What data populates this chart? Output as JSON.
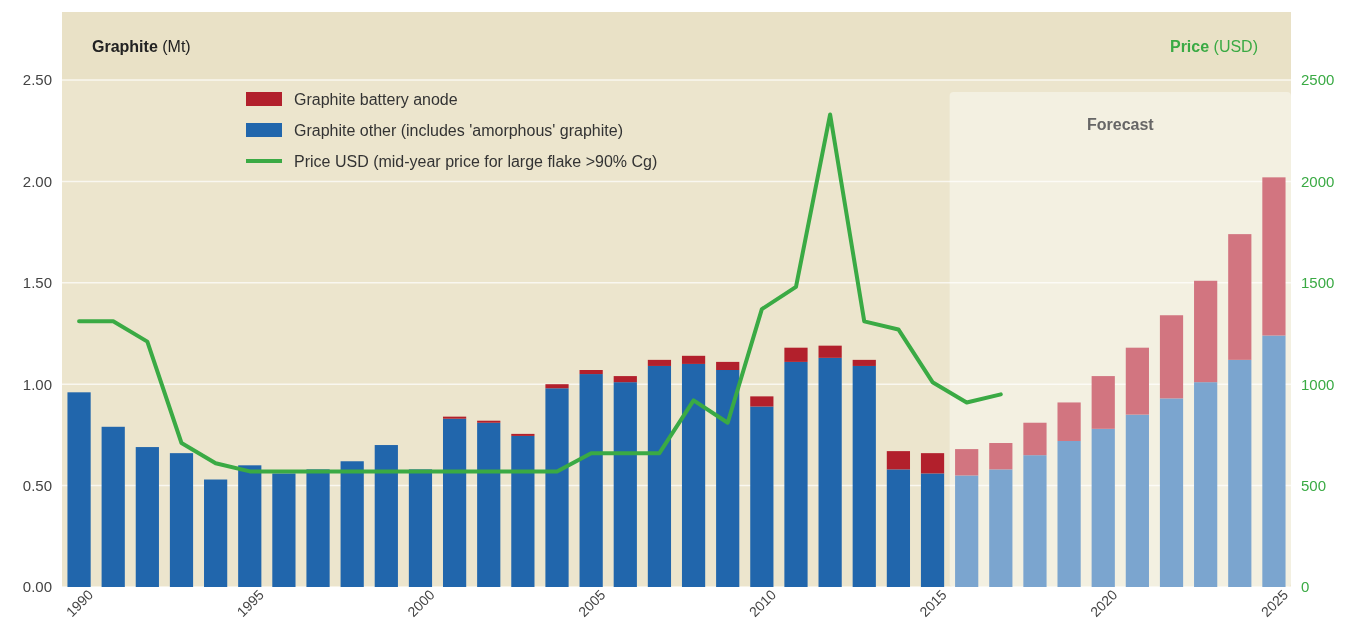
{
  "chart_data": {
    "type": "bar",
    "stacked": true,
    "ylabel": "Graphite (Mt)",
    "y2label": "Price (USD)",
    "x": [
      1990,
      1991,
      1992,
      1993,
      1994,
      1995,
      1996,
      1997,
      1998,
      1999,
      2000,
      2001,
      2002,
      2003,
      2004,
      2005,
      2006,
      2007,
      2008,
      2009,
      2010,
      2011,
      2012,
      2013,
      2014,
      2015,
      2016,
      2017,
      2018,
      2019,
      2020,
      2021,
      2022,
      2023,
      2024,
      2025
    ],
    "xlim": [
      1989.5,
      2025.5
    ],
    "xticks": [
      1990,
      1995,
      2000,
      2005,
      2010,
      2015,
      2020,
      2025
    ],
    "ylim": [
      0,
      2.5
    ],
    "yticks": [
      {
        "value": 0,
        "label": "0.00"
      },
      {
        "value": 0.5,
        "label": "0.50"
      },
      {
        "value": 1,
        "label": "1.00"
      },
      {
        "value": 1.5,
        "label": "1.50"
      },
      {
        "value": 2,
        "label": "2.00"
      },
      {
        "value": 2.5,
        "label": "2.50"
      }
    ],
    "y2lim": [
      0,
      2500
    ],
    "y2ticks": [
      0,
      500,
      1000,
      1500,
      2000,
      2500
    ],
    "grid": "y",
    "legend": "top left",
    "series": [
      {
        "name": "Graphite other (includes 'amorphous' graphite)",
        "color": "#2166ac",
        "colors": [
          "#2166ac",
          "#2166ac",
          "#2166ac",
          "#2166ac",
          "#2166ac",
          "#2166ac",
          "#2166ac",
          "#2166ac",
          "#2166ac",
          "#2166ac",
          "#2166ac",
          "#2166ac",
          "#2166ac",
          "#2166ac",
          "#2166ac",
          "#2166ac",
          "#2166ac",
          "#2166ac",
          "#2166ac",
          "#2166ac",
          "#2166ac",
          "#2166ac",
          "#2166ac",
          "#2166ac",
          "#2166ac",
          "#2166ac",
          "#7ba5cf",
          "#7ba5cf",
          "#7ba5cf",
          "#7ba5cf",
          "#7ba5cf",
          "#7ba5cf",
          "#7ba5cf",
          "#7ba5cf",
          "#7ba5cf",
          "#7ba5cf"
        ],
        "values": [
          0.96,
          0.79,
          0.69,
          0.66,
          0.53,
          0.6,
          0.56,
          0.58,
          0.62,
          0.7,
          0.58,
          0.83,
          0.81,
          0.745,
          0.98,
          1.05,
          1.01,
          1.09,
          1.1,
          1.07,
          0.89,
          1.11,
          1.13,
          1.09,
          0.58,
          0.56,
          0.55,
          0.58,
          0.65,
          0.72,
          0.78,
          0.85,
          0.93,
          1.01,
          1.12,
          1.24
        ]
      },
      {
        "name": "Graphite battery anode",
        "color": "#b2202c",
        "colors": [
          "#b2202c",
          "#b2202c",
          "#b2202c",
          "#b2202c",
          "#b2202c",
          "#b2202c",
          "#b2202c",
          "#b2202c",
          "#b2202c",
          "#b2202c",
          "#b2202c",
          "#b2202c",
          "#b2202c",
          "#b2202c",
          "#b2202c",
          "#b2202c",
          "#b2202c",
          "#b2202c",
          "#b2202c",
          "#b2202c",
          "#b2202c",
          "#b2202c",
          "#b2202c",
          "#b2202c",
          "#b2202c",
          "#b2202c",
          "#d27580",
          "#d27580",
          "#d27580",
          "#d27580",
          "#d27580",
          "#d27580",
          "#d27580",
          "#d27580",
          "#d27580",
          "#d27580"
        ],
        "values": [
          0,
          0,
          0,
          0,
          0,
          0,
          0,
          0,
          0,
          0,
          0,
          0.01,
          0.01,
          0.01,
          0.02,
          0.02,
          0.03,
          0.03,
          0.04,
          0.04,
          0.05,
          0.07,
          0.06,
          0.03,
          0.09,
          0.1,
          0.13,
          0.13,
          0.16,
          0.19,
          0.26,
          0.33,
          0.41,
          0.5,
          0.62,
          0.78
        ]
      },
      {
        "name": "Price USD (mid-year price for large flake >90% Cg)",
        "type": "line",
        "axis": "y2",
        "color": "#3aaa44",
        "x": [
          1990,
          1991,
          1992,
          1993,
          1994,
          1995,
          1996,
          1997,
          1998,
          1999,
          2000,
          2001,
          2002,
          2003,
          2004,
          2005,
          2006,
          2007,
          2008,
          2009,
          2010,
          2011,
          2012,
          2013,
          2014,
          2015,
          2016,
          2017
        ],
        "values": [
          1310,
          1310,
          1210,
          710,
          610,
          570,
          570,
          570,
          570,
          570,
          570,
          570,
          570,
          570,
          570,
          660,
          660,
          660,
          920,
          810,
          1370,
          1480,
          2330,
          1310,
          1270,
          1010,
          910,
          950
        ]
      }
    ],
    "bands": [
      {
        "axis": "x",
        "from": 2015.5,
        "to": 2025.5,
        "label": "Forecast",
        "color": "#f3f0e1"
      }
    ]
  }
}
